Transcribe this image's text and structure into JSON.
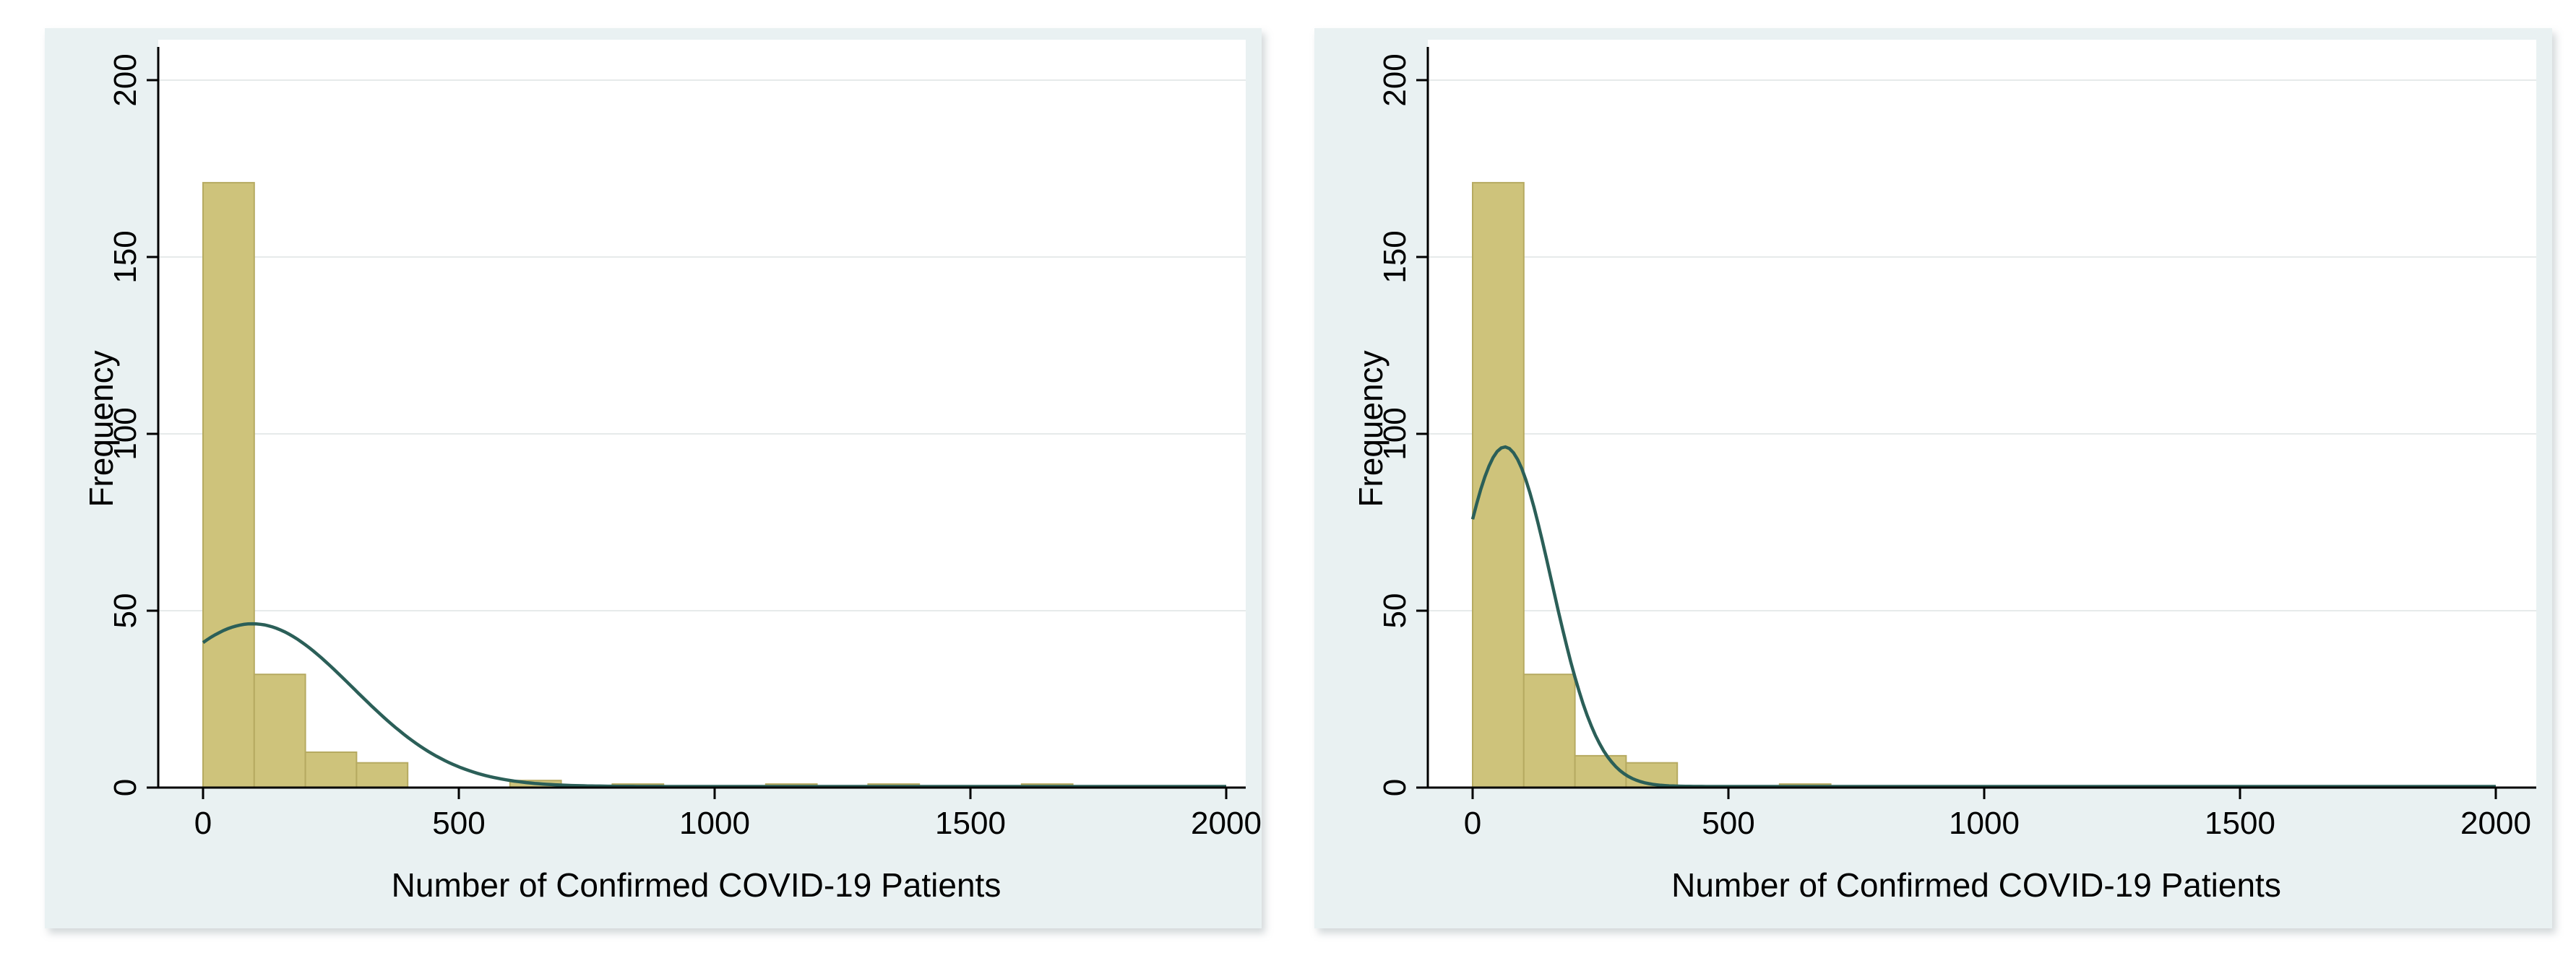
{
  "page": {
    "background": "#ffffff"
  },
  "chart_data": [
    {
      "type": "bar",
      "subtype": "histogram-with-normal-overlay",
      "title": "",
      "xlabel": "Number of Confirmed COVID-19 Patients",
      "ylabel": "Frequency",
      "xlim": [
        -90,
        2040
      ],
      "ylim": [
        0,
        211
      ],
      "grid": "horizontal-only",
      "legend": "none",
      "bin_width": 100,
      "xticks": [
        {
          "v": 0,
          "label": "0"
        },
        {
          "v": 500,
          "label": "500"
        },
        {
          "v": 1000,
          "label": "1000"
        },
        {
          "v": 1500,
          "label": "1500"
        },
        {
          "v": 2000,
          "label": "2000"
        }
      ],
      "yticks": [
        {
          "v": 0,
          "label": "0"
        },
        {
          "v": 50,
          "label": "50"
        },
        {
          "v": 100,
          "label": "100"
        },
        {
          "v": 150,
          "label": "150"
        },
        {
          "v": 200,
          "label": "200"
        }
      ],
      "bars": [
        {
          "bin_start": 0,
          "frequency": 171
        },
        {
          "bin_start": 100,
          "frequency": 32
        },
        {
          "bin_start": 200,
          "frequency": 10
        },
        {
          "bin_start": 300,
          "frequency": 7
        },
        {
          "bin_start": 600,
          "frequency": 2
        },
        {
          "bin_start": 800,
          "frequency": 1
        },
        {
          "bin_start": 1100,
          "frequency": 1
        },
        {
          "bin_start": 1300,
          "frequency": 1
        },
        {
          "bin_start": 1600,
          "frequency": 1
        }
      ],
      "normal_curve": {
        "mean": 97,
        "sd": 196,
        "peak_frequency": 46,
        "curve_x_start": 0,
        "curve_x_end": 2000
      },
      "colors": {
        "figure_bg": "#e9f1f2",
        "plot_bg": "#ffffff",
        "gridline": "#e6eaea",
        "bar_fill": "#cec37b",
        "bar_border": "#b6aa61",
        "curve": "#2b5f58",
        "axis": "#000000",
        "text": "#000000"
      }
    },
    {
      "type": "bar",
      "subtype": "histogram-with-normal-overlay",
      "title": "",
      "xlabel": "Number of Confirmed COVID-19 Patients",
      "ylabel": "Frequency",
      "xlim": [
        -90,
        2040
      ],
      "ylim": [
        0,
        211
      ],
      "grid": "horizontal-only",
      "legend": "none",
      "bin_width": 100,
      "xticks": [
        {
          "v": 0,
          "label": "0"
        },
        {
          "v": 500,
          "label": "500"
        },
        {
          "v": 1000,
          "label": "1000"
        },
        {
          "v": 1500,
          "label": "1500"
        },
        {
          "v": 2000,
          "label": "2000"
        }
      ],
      "yticks": [
        {
          "v": 0,
          "label": "0"
        },
        {
          "v": 50,
          "label": "50"
        },
        {
          "v": 100,
          "label": "100"
        },
        {
          "v": 150,
          "label": "150"
        },
        {
          "v": 200,
          "label": "200"
        }
      ],
      "bars": [
        {
          "bin_start": 0,
          "frequency": 171
        },
        {
          "bin_start": 100,
          "frequency": 32
        },
        {
          "bin_start": 200,
          "frequency": 9
        },
        {
          "bin_start": 300,
          "frequency": 7
        },
        {
          "bin_start": 600,
          "frequency": 1
        }
      ],
      "normal_curve": {
        "mean": 63,
        "sd": 91,
        "peak_frequency": 96,
        "curve_x_start": 0,
        "curve_x_end": 2000
      },
      "colors": {
        "figure_bg": "#e9f1f2",
        "plot_bg": "#ffffff",
        "gridline": "#e6eaea",
        "bar_fill": "#cec37b",
        "bar_border": "#b6aa61",
        "curve": "#2b5f58",
        "axis": "#000000",
        "text": "#000000"
      }
    }
  ]
}
